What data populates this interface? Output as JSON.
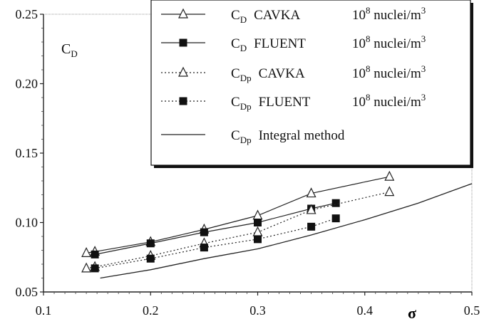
{
  "chart_data": {
    "type": "line",
    "ylabel": "C",
    "ylabel_sub": "D",
    "xlabel": "σ",
    "xlim": [
      0.1,
      0.5
    ],
    "ylim": [
      0.05,
      0.25
    ],
    "x_ticks": [
      "0.1",
      "0.2",
      "0.3",
      "0.4",
      "0.5"
    ],
    "y_ticks": [
      "0.05",
      "0.10",
      "0.15",
      "0.20",
      "0.25"
    ],
    "grid": false,
    "legend_position": "top-right",
    "series": [
      {
        "name_main": "C",
        "name_sub": "D",
        "name_source": "CAVKA",
        "name_unit": "10",
        "name_exp": "8",
        "name_unit_text": " nuclei/m",
        "name_unit_exp": "3",
        "style": "solid",
        "marker": "open-triangle",
        "x": [
          0.14,
          0.148,
          0.2,
          0.25,
          0.3,
          0.35,
          0.423
        ],
        "y": [
          0.078,
          0.079,
          0.086,
          0.095,
          0.105,
          0.121,
          0.133
        ]
      },
      {
        "name_main": "C",
        "name_sub": "D",
        "name_source": "FLUENT",
        "name_unit": "10",
        "name_exp": "8",
        "name_unit_text": " nuclei/m",
        "name_unit_exp": "3",
        "style": "solid",
        "marker": "filled-square",
        "x": [
          0.148,
          0.2,
          0.25,
          0.3,
          0.35,
          0.373
        ],
        "y": [
          0.077,
          0.085,
          0.093,
          0.1,
          0.11,
          0.114
        ]
      },
      {
        "name_main": "C",
        "name_sub": "Dp",
        "name_source": "CAVKA",
        "name_unit": "10",
        "name_exp": "8",
        "name_unit_text": " nuclei/m",
        "name_unit_exp": "3",
        "style": "dotted",
        "marker": "open-triangle",
        "x": [
          0.14,
          0.148,
          0.2,
          0.25,
          0.3,
          0.35,
          0.423
        ],
        "y": [
          0.067,
          0.068,
          0.076,
          0.085,
          0.093,
          0.109,
          0.122
        ]
      },
      {
        "name_main": "C",
        "name_sub": "Dp",
        "name_source": "FLUENT",
        "name_unit": "10",
        "name_exp": "8",
        "name_unit_text": " nuclei/m",
        "name_unit_exp": "3",
        "style": "dotted",
        "marker": "filled-square",
        "x": [
          0.148,
          0.2,
          0.25,
          0.3,
          0.35,
          0.373
        ],
        "y": [
          0.067,
          0.074,
          0.082,
          0.088,
          0.097,
          0.103
        ]
      },
      {
        "name_main": "C",
        "name_sub": "Dp",
        "name_source": "Integral method",
        "style": "solid",
        "marker": "none",
        "x": [
          0.153,
          0.2,
          0.25,
          0.3,
          0.35,
          0.4,
          0.45,
          0.5
        ],
        "y": [
          0.06,
          0.066,
          0.074,
          0.081,
          0.091,
          0.102,
          0.114,
          0.128
        ]
      }
    ]
  }
}
